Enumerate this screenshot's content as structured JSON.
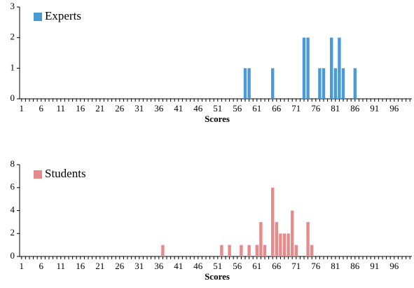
{
  "chart_data": [
    {
      "type": "bar",
      "x_label": "Scores",
      "categories": [
        "1",
        null,
        null,
        null,
        null,
        "6",
        null,
        null,
        null,
        null,
        "11",
        null,
        null,
        null,
        null,
        "16",
        null,
        null,
        null,
        null,
        "21",
        null,
        null,
        null,
        null,
        "26",
        null,
        null,
        null,
        null,
        "31",
        null,
        null,
        null,
        null,
        "36",
        null,
        null,
        null,
        null,
        "41",
        null,
        null,
        null,
        null,
        "46",
        null,
        null,
        null,
        null,
        "51",
        null,
        null,
        null,
        null,
        "56",
        null,
        null,
        null,
        null,
        "61",
        null,
        null,
        null,
        null,
        "66",
        null,
        null,
        null,
        null,
        "71",
        null,
        null,
        null,
        null,
        "76",
        null,
        null,
        null,
        null,
        "81",
        null,
        null,
        null,
        null,
        "86",
        null,
        null,
        null,
        null,
        "91",
        null,
        null,
        null,
        null,
        "96",
        null,
        null,
        null,
        null
      ],
      "series": [
        {
          "name": "Experts",
          "color": "#4a9ad6",
          "values": [
            0,
            0,
            0,
            0,
            0,
            0,
            0,
            0,
            0,
            0,
            0,
            0,
            0,
            0,
            0,
            0,
            0,
            0,
            0,
            0,
            0,
            0,
            0,
            0,
            0,
            0,
            0,
            0,
            0,
            0,
            0,
            0,
            0,
            0,
            0,
            0,
            0,
            0,
            0,
            0,
            0,
            0,
            0,
            0,
            0,
            0,
            0,
            0,
            0,
            0,
            0,
            0,
            0,
            0,
            0,
            0,
            0,
            1,
            1,
            0,
            0,
            0,
            0,
            0,
            1,
            0,
            0,
            0,
            0,
            0,
            0,
            0,
            2,
            2,
            0,
            0,
            1,
            1,
            0,
            2,
            1,
            2,
            1,
            0,
            0,
            1,
            0,
            0,
            0,
            0,
            0,
            0,
            0,
            0,
            0,
            0,
            0,
            0,
            0,
            0
          ]
        }
      ],
      "ylim": [
        0,
        3
      ],
      "yticks": [
        0,
        1,
        2,
        3
      ],
      "legend": "top-left"
    },
    {
      "type": "bar",
      "x_label": "Scores",
      "categories": [
        "1",
        null,
        null,
        null,
        null,
        "6",
        null,
        null,
        null,
        null,
        "11",
        null,
        null,
        null,
        null,
        "16",
        null,
        null,
        null,
        null,
        "21",
        null,
        null,
        null,
        null,
        "26",
        null,
        null,
        null,
        null,
        "31",
        null,
        null,
        null,
        null,
        "36",
        null,
        null,
        null,
        null,
        "41",
        null,
        null,
        null,
        null,
        "46",
        null,
        null,
        null,
        null,
        "51",
        null,
        null,
        null,
        null,
        "56",
        null,
        null,
        null,
        null,
        "61",
        null,
        null,
        null,
        null,
        "66",
        null,
        null,
        null,
        null,
        "71",
        null,
        null,
        null,
        null,
        "76",
        null,
        null,
        null,
        null,
        "81",
        null,
        null,
        null,
        null,
        "86",
        null,
        null,
        null,
        null,
        "91",
        null,
        null,
        null,
        null,
        "96",
        null,
        null,
        null,
        null
      ],
      "series": [
        {
          "name": "Students",
          "color": "#e88a8a",
          "values": [
            0,
            0,
            0,
            0,
            0,
            0,
            0,
            0,
            0,
            0,
            0,
            0,
            0,
            0,
            0,
            0,
            0,
            0,
            0,
            0,
            0,
            0,
            0,
            0,
            0,
            0,
            0,
            0,
            0,
            0,
            0,
            0,
            0,
            0,
            0,
            0,
            1,
            0,
            0,
            0,
            0,
            0,
            0,
            0,
            0,
            0,
            0,
            0,
            0,
            0,
            0,
            1,
            0,
            1,
            0,
            0,
            1,
            0,
            1,
            0,
            1,
            3,
            1,
            0,
            6,
            3,
            2,
            2,
            2,
            4,
            1,
            0,
            0,
            3,
            1,
            0,
            0,
            0,
            0,
            0,
            0,
            0,
            0,
            0,
            0,
            0,
            0,
            0,
            0,
            0,
            0,
            0,
            0,
            0,
            0,
            0,
            0,
            0,
            0,
            0
          ]
        }
      ],
      "ylim": [
        0,
        8
      ],
      "yticks": [
        0,
        2,
        4,
        6,
        8
      ],
      "legend": "top-left"
    }
  ]
}
